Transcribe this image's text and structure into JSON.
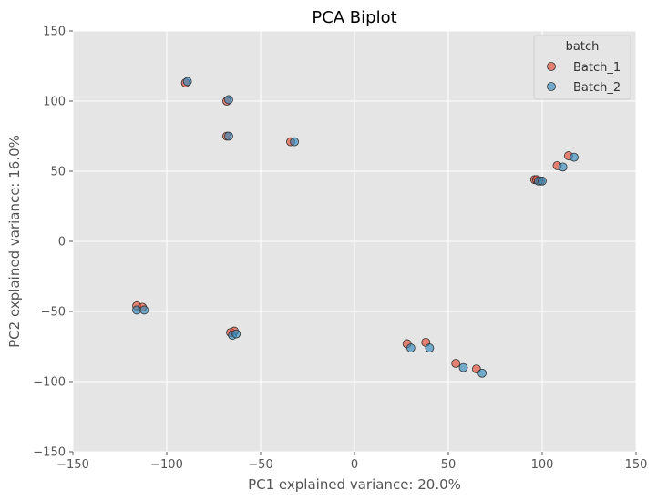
{
  "chart_data": {
    "type": "scatter",
    "title": "PCA Biplot",
    "xlabel": "PC1 explained variance: 20.0%",
    "ylabel": "PC2 explained variance: 16.0%",
    "xlim": [
      -150,
      150
    ],
    "ylim": [
      -150,
      150
    ],
    "xticks": [
      -150,
      -100,
      -50,
      0,
      50,
      100,
      150
    ],
    "yticks": [
      -150,
      -100,
      -50,
      0,
      50,
      100,
      150
    ],
    "xtick_labels": [
      "−150",
      "−100",
      "−50",
      "0",
      "50",
      "100",
      "150"
    ],
    "ytick_labels": [
      "−150",
      "−100",
      "−50",
      "0",
      "50",
      "100",
      "150"
    ],
    "grid": true,
    "legend": {
      "title": "batch",
      "position": "top-right"
    },
    "colors": {
      "background": "#e5e5e5",
      "grid": "#ffffff"
    },
    "series": [
      {
        "name": "Batch_1",
        "color": "#e24a33",
        "points": [
          {
            "x": -90,
            "y": 113
          },
          {
            "x": -68,
            "y": 100
          },
          {
            "x": -68,
            "y": 75
          },
          {
            "x": -34,
            "y": 71
          },
          {
            "x": 96,
            "y": 44
          },
          {
            "x": 97,
            "y": 44
          },
          {
            "x": 108,
            "y": 54
          },
          {
            "x": 114,
            "y": 61
          },
          {
            "x": 99,
            "y": 43
          },
          {
            "x": -116,
            "y": -46
          },
          {
            "x": -113,
            "y": -47
          },
          {
            "x": -66,
            "y": -65
          },
          {
            "x": -64,
            "y": -64
          },
          {
            "x": 28,
            "y": -73
          },
          {
            "x": 38,
            "y": -72
          },
          {
            "x": 54,
            "y": -87
          },
          {
            "x": 65,
            "y": -91
          }
        ]
      },
      {
        "name": "Batch_2",
        "color": "#348abd",
        "points": [
          {
            "x": -89,
            "y": 114
          },
          {
            "x": -67,
            "y": 101
          },
          {
            "x": -67,
            "y": 75
          },
          {
            "x": -32,
            "y": 71
          },
          {
            "x": 98,
            "y": 43
          },
          {
            "x": 100,
            "y": 43
          },
          {
            "x": 111,
            "y": 53
          },
          {
            "x": 117,
            "y": 60
          },
          {
            "x": -116,
            "y": -49
          },
          {
            "x": -112,
            "y": -49
          },
          {
            "x": -65,
            "y": -67
          },
          {
            "x": -63,
            "y": -66
          },
          {
            "x": 30,
            "y": -76
          },
          {
            "x": 40,
            "y": -76
          },
          {
            "x": 58,
            "y": -90
          },
          {
            "x": 68,
            "y": -94
          }
        ]
      }
    ]
  }
}
